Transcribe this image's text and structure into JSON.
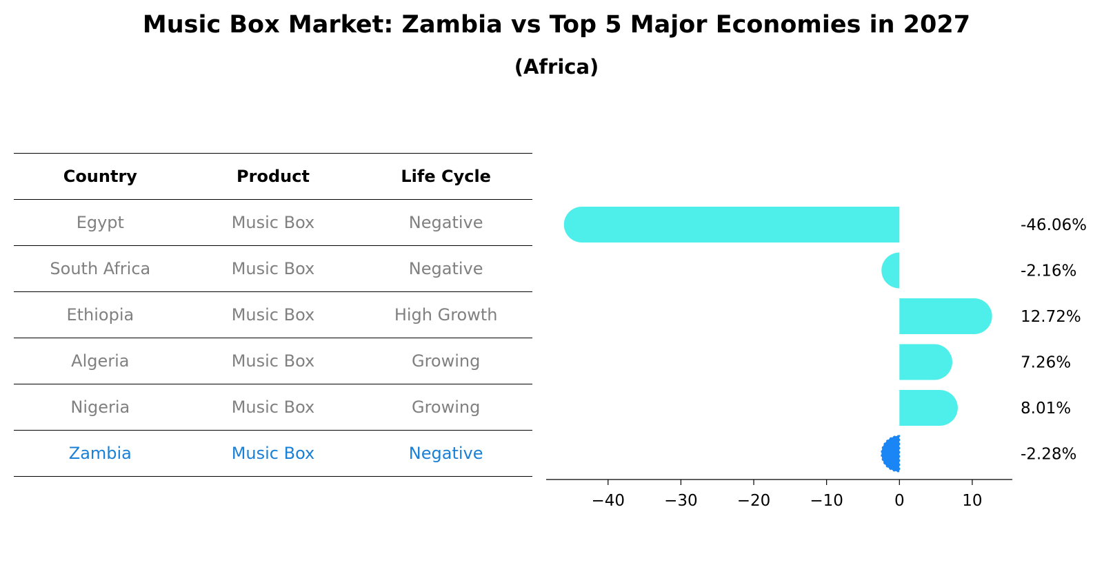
{
  "title": "Music Box Market: Zambia vs Top 5 Major Economies in 2027",
  "subtitle": "(Africa)",
  "table": {
    "headers": [
      "Country",
      "Product",
      "Life Cycle"
    ],
    "rows": [
      [
        "Egypt",
        "Music Box",
        "Negative"
      ],
      [
        "South Africa",
        "Music Box",
        "Negative"
      ],
      [
        "Ethiopia",
        "Music Box",
        "High Growth"
      ],
      [
        "Algeria",
        "Music Box",
        "Growing"
      ],
      [
        "Nigeria",
        "Music Box",
        "Growing"
      ],
      [
        "Zambia",
        "Music Box",
        "Negative"
      ]
    ],
    "highlight_row": 5
  },
  "chart_data": {
    "type": "bar",
    "orientation": "horizontal",
    "categories": [
      "Egypt",
      "South Africa",
      "Ethiopia",
      "Algeria",
      "Nigeria",
      "Zambia"
    ],
    "values": [
      -46.06,
      -2.16,
      12.72,
      7.26,
      8.01,
      -2.28
    ],
    "value_labels": [
      "-46.06%",
      "-2.16%",
      "12.72%",
      "7.26%",
      "8.01%",
      "-2.28%"
    ],
    "xlim": [
      -48.5,
      15.5
    ],
    "xticks": [
      -40,
      -30,
      -20,
      -10,
      0,
      10
    ],
    "xtick_labels": [
      "−40",
      "−30",
      "−20",
      "−10",
      "0",
      "10"
    ],
    "highlight_index": 5,
    "colors": {
      "bar": "#4eeeea",
      "highlight": "#1a85f5"
    }
  }
}
